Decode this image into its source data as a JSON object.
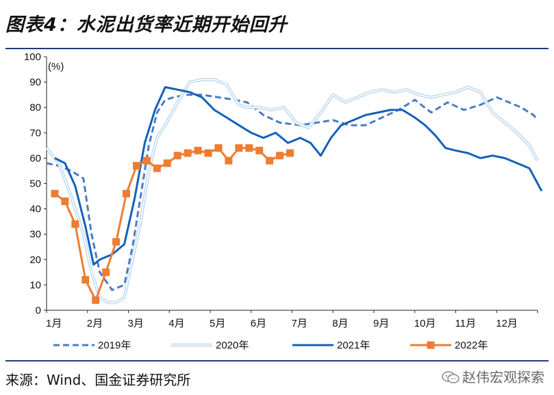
{
  "title": "图表4：水泥出货率近期开始回升",
  "source": "来源：Wind、国金证券研究所",
  "watermark": "赵伟宏观探索",
  "chart_data": {
    "type": "line",
    "unit_label": "(%)",
    "ylim": [
      0,
      100
    ],
    "yticks": [
      0,
      10,
      20,
      30,
      40,
      50,
      60,
      70,
      80,
      90,
      100
    ],
    "xlim": [
      0,
      12
    ],
    "month_labels": [
      "1月",
      "2月",
      "3月",
      "4月",
      "5月",
      "6月",
      "7月",
      "8月",
      "9月",
      "10月",
      "11月",
      "12月"
    ],
    "series": [
      {
        "name": "2019年",
        "color": "#4a7cc4",
        "style": "dashed",
        "x": [
          0,
          0.3,
          0.6,
          0.9,
          1.1,
          1.3,
          1.6,
          1.9,
          2.1,
          2.3,
          2.5,
          2.7,
          2.9,
          3.1,
          3.4,
          3.8,
          4.2,
          4.6,
          4.9,
          5.3,
          5.7,
          6.2,
          6.6,
          7.0,
          7.4,
          7.8,
          8.2,
          8.6,
          9.0,
          9.4,
          9.8,
          10.2,
          10.6,
          11.0,
          11.3,
          11.6,
          11.9,
          12.0
        ],
        "y": [
          58,
          57,
          55,
          52,
          30,
          15,
          8,
          10,
          25,
          45,
          65,
          78,
          83,
          84,
          85,
          85,
          84,
          83,
          82,
          77,
          74,
          73,
          74,
          75,
          73,
          73,
          76,
          79,
          83,
          78,
          82,
          79,
          81,
          84,
          82,
          80,
          77,
          75
        ]
      },
      {
        "name": "2020年",
        "color": "#cfe4f5",
        "style": "double",
        "x": [
          0,
          0.3,
          0.6,
          0.9,
          1.1,
          1.3,
          1.5,
          1.7,
          1.9,
          2.1,
          2.3,
          2.5,
          2.7,
          2.9,
          3.2,
          3.5,
          3.8,
          4.1,
          4.4,
          4.7,
          4.9,
          5.2,
          5.5,
          5.8,
          6.1,
          6.4,
          6.7,
          7.0,
          7.3,
          7.6,
          7.9,
          8.2,
          8.5,
          8.8,
          9.1,
          9.4,
          9.7,
          10.0,
          10.3,
          10.6,
          10.9,
          11.2,
          11.5,
          11.8,
          12.0
        ],
        "y": [
          64,
          58,
          45,
          30,
          15,
          5,
          3,
          3,
          5,
          20,
          35,
          55,
          68,
          73,
          82,
          90,
          91,
          91,
          89,
          81,
          80,
          80,
          79,
          80,
          74,
          72,
          78,
          85,
          82,
          84,
          86,
          87,
          86,
          87,
          85,
          84,
          85,
          86,
          88,
          86,
          78,
          74,
          70,
          65,
          59
        ]
      },
      {
        "name": "2021年",
        "color": "#1360b8",
        "style": "solid",
        "x": [
          0.2,
          0.45,
          0.7,
          0.95,
          1.15,
          1.3,
          1.6,
          1.9,
          2.15,
          2.4,
          2.65,
          2.9,
          3.2,
          3.5,
          3.8,
          4.1,
          4.4,
          4.7,
          5.0,
          5.3,
          5.6,
          5.9,
          6.2,
          6.45,
          6.7,
          6.95,
          7.2,
          7.5,
          7.8,
          8.1,
          8.4,
          8.7,
          9.0,
          9.25,
          9.5,
          9.75,
          10.0,
          10.3,
          10.6,
          10.9,
          11.2,
          11.5,
          11.8,
          12.1
        ],
        "y": [
          60,
          58,
          49,
          33,
          18,
          20,
          22,
          26,
          44,
          66,
          79,
          88,
          87,
          86,
          84,
          79,
          76,
          73,
          70,
          68,
          70,
          66,
          68,
          66,
          61,
          68,
          73,
          75,
          77,
          78,
          79,
          79,
          76,
          73,
          69,
          64,
          63,
          62,
          60,
          61,
          60,
          58,
          56,
          47
        ]
      },
      {
        "name": "2022年",
        "color": "#ed7d31",
        "style": "solid-square",
        "x": [
          0.2,
          0.45,
          0.7,
          0.95,
          1.2,
          1.45,
          1.7,
          1.95,
          2.2,
          2.45,
          2.7,
          2.95,
          3.2,
          3.45,
          3.7,
          3.95,
          4.2,
          4.45,
          4.7,
          4.95,
          5.2,
          5.45,
          5.7,
          5.95
        ],
        "y": [
          46,
          43,
          34,
          12,
          4,
          15,
          27,
          46,
          57,
          59,
          56,
          58,
          61,
          62,
          63,
          62,
          64,
          59,
          64,
          64,
          63,
          59,
          61,
          62
        ]
      }
    ],
    "legend": [
      "2019年",
      "2020年",
      "2021年",
      "2022年"
    ],
    "legend_placement": "bottom"
  }
}
